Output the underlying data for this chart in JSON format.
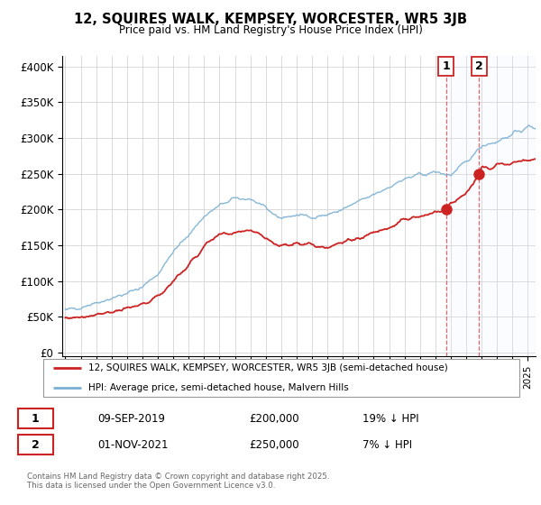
{
  "title": "12, SQUIRES WALK, KEMPSEY, WORCESTER, WR5 3JB",
  "subtitle": "Price paid vs. HM Land Registry's House Price Index (HPI)",
  "ylabel_ticks": [
    "£0",
    "£50K",
    "£100K",
    "£150K",
    "£200K",
    "£250K",
    "£300K",
    "£350K",
    "£400K"
  ],
  "ytick_values": [
    0,
    50000,
    100000,
    150000,
    200000,
    250000,
    300000,
    350000,
    400000
  ],
  "ylim": [
    -5000,
    415000
  ],
  "xlim_start": 1994.8,
  "xlim_end": 2025.5,
  "legend_line1": "12, SQUIRES WALK, KEMPSEY, WORCESTER, WR5 3JB (semi-detached house)",
  "legend_line2": "HPI: Average price, semi-detached house, Malvern Hills",
  "transaction1_date": "09-SEP-2019",
  "transaction1_price": "£200,000",
  "transaction1_hpi": "19% ↓ HPI",
  "transaction2_date": "01-NOV-2021",
  "transaction2_price": "£250,000",
  "transaction2_hpi": "7% ↓ HPI",
  "footer": "Contains HM Land Registry data © Crown copyright and database right 2025.\nThis data is licensed under the Open Government Licence v3.0.",
  "line_color_red": "#cc2222",
  "line_color_blue": "#7ab0d4",
  "highlight_box_color": "#ddeeff",
  "dashed_line_color": "#dd4444",
  "transaction1_x": 2019.69,
  "transaction2_x": 2021.84,
  "transaction1_y": 200000,
  "transaction2_y": 250000,
  "hpi_key_years": [
    1995,
    1996,
    1997,
    1998,
    1999,
    2000,
    2001,
    2002,
    2003,
    2004,
    2005,
    2006,
    2007,
    2008,
    2009,
    2010,
    2011,
    2012,
    2013,
    2014,
    2015,
    2016,
    2017,
    2018,
    2019,
    2020,
    2021,
    2022,
    2023,
    2024,
    2025
  ],
  "hpi_key_vals": [
    58000,
    64000,
    70000,
    76000,
    82000,
    92000,
    110000,
    140000,
    165000,
    190000,
    205000,
    215000,
    215000,
    200000,
    188000,
    192000,
    190000,
    192000,
    200000,
    210000,
    220000,
    232000,
    242000,
    248000,
    252000,
    248000,
    265000,
    290000,
    295000,
    305000,
    315000
  ],
  "prop_key_years": [
    1995,
    1996,
    1997,
    1998,
    1999,
    2000,
    2001,
    2002,
    2003,
    2004,
    2005,
    2006,
    2007,
    2008,
    2009,
    2010,
    2011,
    2012,
    2013,
    2014,
    2015,
    2016,
    2017,
    2018,
    2019,
    2019.69,
    2020,
    2021,
    2021.84,
    2022,
    2023,
    2024,
    2025
  ],
  "prop_key_vals": [
    48000,
    50000,
    54000,
    57000,
    60000,
    67000,
    78000,
    100000,
    122000,
    148000,
    163000,
    168000,
    173000,
    160000,
    148000,
    155000,
    150000,
    148000,
    153000,
    160000,
    168000,
    175000,
    185000,
    190000,
    195000,
    200000,
    210000,
    220000,
    250000,
    258000,
    262000,
    265000,
    268000
  ]
}
